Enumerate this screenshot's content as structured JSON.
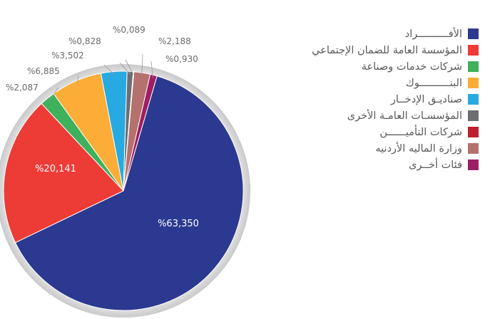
{
  "chart_data": {
    "type": "pie",
    "title": "",
    "legend_position": "right",
    "categories": [
      "الأفــــــــــراد",
      "المؤسسة العامة للضمان الإجتماعي",
      "شركات خدمات وصناعة",
      "البنــــــــــوك",
      "صناديـق الإدخــار",
      "المؤسسـات العامـة الأخرى",
      "شركات التأميــــــن",
      "وزارة الماليه الأردنيه",
      "فئات أخــرى"
    ],
    "values": [
      63.35,
      20.141,
      2.087,
      6.885,
      3.502,
      0.828,
      0.089,
      2.188,
      0.93
    ],
    "labels": [
      "%63,350",
      "%20,141",
      "%2,087",
      "%6,885",
      "%3,502",
      "%0,828",
      "%0,089",
      "%2,188",
      "%0,930"
    ],
    "colors": [
      "#2b3990",
      "#ed3b36",
      "#3fb05b",
      "#fbad38",
      "#27aae1",
      "#6d6e71",
      "#be1e2d",
      "#b5716d",
      "#9e1f63"
    ]
  }
}
